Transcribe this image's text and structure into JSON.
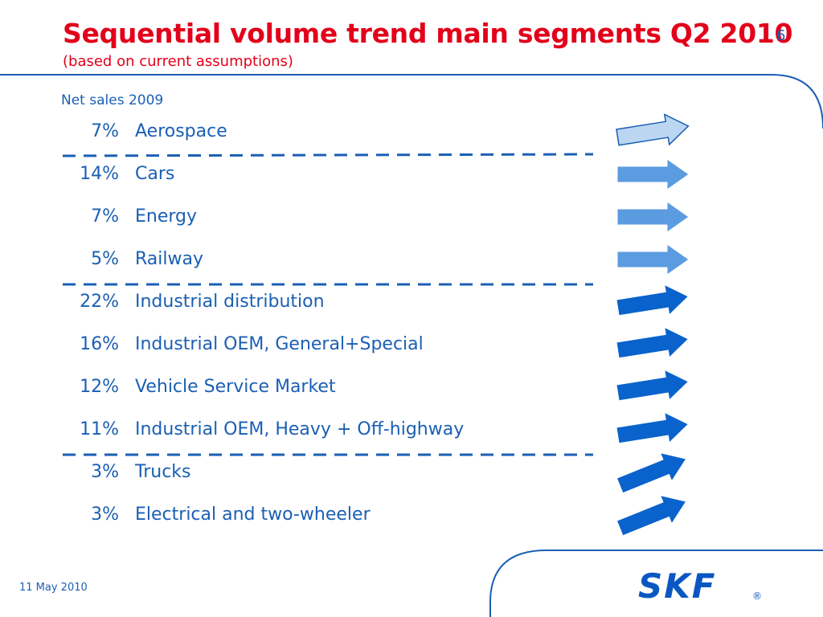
{
  "slide": {
    "title": "Sequential volume trend main segments Q2 2010",
    "subtitle": "(based on current assumptions)",
    "page_number": "6",
    "column_header": "Net sales 2009",
    "footer_date": "11 May 2010"
  },
  "segments": [
    {
      "pct": "7%",
      "name": "Aerospace",
      "trend": "up-slight",
      "color": "#bcd6f2"
    },
    {
      "pct": "14%",
      "name": "Cars",
      "trend": "flat",
      "color": "#5b9be0"
    },
    {
      "pct": "7%",
      "name": "Energy",
      "trend": "flat",
      "color": "#5b9be0"
    },
    {
      "pct": "5%",
      "name": "Railway",
      "trend": "flat",
      "color": "#5b9be0"
    },
    {
      "pct": "22%",
      "name": "Industrial distribution",
      "trend": "up-slight",
      "color": "#0a63cc"
    },
    {
      "pct": "16%",
      "name": "Industrial OEM, General+Special",
      "trend": "up-slight",
      "color": "#0a63cc"
    },
    {
      "pct": "12%",
      "name": "Vehicle Service Market",
      "trend": "up-slight",
      "color": "#0a63cc"
    },
    {
      "pct": "11%",
      "name": "Industrial OEM, Heavy + Off-highway",
      "trend": "up-slight",
      "color": "#0a63cc"
    },
    {
      "pct": "3%",
      "name": "Trucks",
      "trend": "up",
      "color": "#0a63cc"
    },
    {
      "pct": "3%",
      "name": "Electrical and two-wheeler",
      "trend": "up",
      "color": "#0a63cc"
    }
  ],
  "logo": {
    "text": "SKF",
    "mark": "®",
    "color": "#0a57c2"
  },
  "colors": {
    "title": "#e2001a",
    "text": "#1b5fb4",
    "frame": "#1b5fb4"
  }
}
